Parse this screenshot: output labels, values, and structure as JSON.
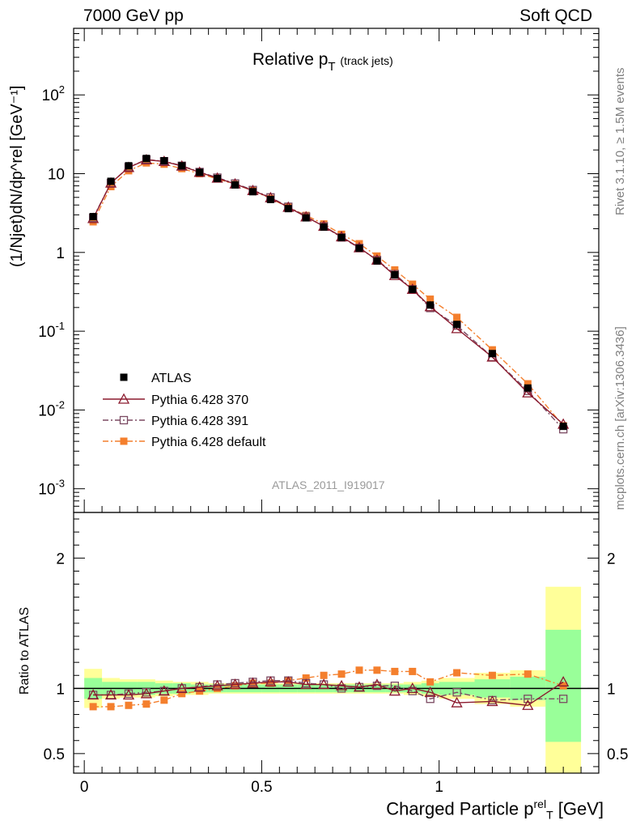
{
  "header": {
    "energy_label": "7000 GeV pp",
    "category_label": "Soft QCD",
    "rivet_label": "Rivet 3.1.10, ≥ 1.5M events",
    "source_label": "mcplots.cern.ch [arXiv:1306.3436]",
    "analysis_label": "ATLAS_2011_I919017"
  },
  "chart_data": [
    {
      "type": "line",
      "title": "Relative p_T (track jets)",
      "title_main": "Relative p",
      "title_sub": "T",
      "title_note": "(track jets)",
      "ylabel": "(1/Njet)dN/dp_T^rel [GeV^-1]",
      "ylabel_text": "(1/Njet)dN/dp^rel [GeV⁻¹]",
      "yscale": "log",
      "ylim": [
        0.0005,
        700
      ],
      "yticks": [
        {
          "value": 0.001,
          "label": "10",
          "exp": "-3"
        },
        {
          "value": 0.01,
          "label": "10",
          "exp": "-2"
        },
        {
          "value": 0.1,
          "label": "10",
          "exp": "-1"
        },
        {
          "value": 1,
          "label": "1",
          "exp": ""
        },
        {
          "value": 10,
          "label": "10",
          "exp": ""
        },
        {
          "value": 100,
          "label": "10",
          "exp": "2"
        }
      ],
      "xlim": [
        -0.03,
        1.45
      ],
      "x": [
        0.025,
        0.075,
        0.125,
        0.175,
        0.225,
        0.275,
        0.325,
        0.375,
        0.425,
        0.475,
        0.525,
        0.575,
        0.625,
        0.675,
        0.725,
        0.775,
        0.825,
        0.875,
        0.925,
        0.975,
        1.05,
        1.15,
        1.25,
        1.35
      ],
      "legend_position": "lower-left",
      "series": [
        {
          "name": "ATLAS",
          "style": "data",
          "marker": "filled-square",
          "color": "#000000",
          "values": [
            2.85,
            8.0,
            12.6,
            15.6,
            14.6,
            12.6,
            10.4,
            8.7,
            7.2,
            5.9,
            4.7,
            3.6,
            2.75,
            2.1,
            1.55,
            1.13,
            0.78,
            0.52,
            0.34,
            0.215,
            0.122,
            0.052,
            0.019,
            0.0062
          ]
        },
        {
          "name": "Pythia 6.428 370",
          "style": "solid",
          "marker": "open-triangle",
          "color": "#8b1a2e",
          "values": [
            2.7,
            7.6,
            12.0,
            15.0,
            14.3,
            12.5,
            10.4,
            8.8,
            7.4,
            6.1,
            4.95,
            3.75,
            2.83,
            2.15,
            1.58,
            1.15,
            0.8,
            0.51,
            0.34,
            0.205,
            0.108,
            0.047,
            0.0165,
            0.0066
          ]
        },
        {
          "name": "Pythia 6.428 391",
          "style": "dashdot",
          "marker": "open-square",
          "color": "#7b4a62",
          "values": [
            2.75,
            7.6,
            12.1,
            15.1,
            14.4,
            12.6,
            10.5,
            8.9,
            7.5,
            6.2,
            5.0,
            3.8,
            2.85,
            2.15,
            1.55,
            1.14,
            0.8,
            0.53,
            0.34,
            0.197,
            0.118,
            0.047,
            0.0175,
            0.0057
          ]
        },
        {
          "name": "Pythia 6.428 default",
          "style": "dashdot",
          "marker": "filled-square",
          "color": "#f47f2d",
          "values": [
            2.45,
            6.85,
            10.9,
            13.7,
            13.2,
            11.6,
            10.0,
            8.6,
            7.3,
            6.1,
            4.85,
            3.75,
            2.95,
            2.3,
            1.7,
            1.29,
            0.9,
            0.6,
            0.395,
            0.255,
            0.15,
            0.058,
            0.0215,
            0.0063
          ]
        }
      ]
    },
    {
      "type": "line",
      "title": "",
      "ylabel": "Ratio to ATLAS",
      "xlabel": "Charged Particle p_T^rel [GeV]",
      "xlabel_main": "Charged Particle p",
      "xlabel_sub": "T",
      "xlabel_sup": "rel",
      "xlabel_unit": " [GeV]",
      "ylim": [
        0.35,
        2.35
      ],
      "yticks": [
        {
          "value": 0.5,
          "label": "0.5"
        },
        {
          "value": 1,
          "label": "1"
        },
        {
          "value": 2,
          "label": "2"
        }
      ],
      "xlim": [
        -0.03,
        1.45
      ],
      "xticks": [
        {
          "value": 0,
          "label": "0"
        },
        {
          "value": 0.5,
          "label": "0.5"
        },
        {
          "value": 1,
          "label": "1"
        }
      ],
      "x": [
        0.025,
        0.075,
        0.125,
        0.175,
        0.225,
        0.275,
        0.325,
        0.375,
        0.425,
        0.475,
        0.525,
        0.575,
        0.625,
        0.675,
        0.725,
        0.775,
        0.825,
        0.875,
        0.925,
        0.975,
        1.05,
        1.15,
        1.25,
        1.35
      ],
      "bands": {
        "edges": [
          0.0,
          0.05,
          0.1,
          0.15,
          0.2,
          0.25,
          0.3,
          0.35,
          0.4,
          0.45,
          0.5,
          0.55,
          0.6,
          0.65,
          0.7,
          0.75,
          0.8,
          0.85,
          0.9,
          0.95,
          1.0,
          1.1,
          1.2,
          1.3,
          1.4
        ],
        "green": [
          [
            0.92,
            1.08
          ],
          [
            0.95,
            1.05
          ],
          [
            0.95,
            1.05
          ],
          [
            0.95,
            1.05
          ],
          [
            0.96,
            1.04
          ],
          [
            0.96,
            1.04
          ],
          [
            0.97,
            1.03
          ],
          [
            0.97,
            1.03
          ],
          [
            0.97,
            1.03
          ],
          [
            0.97,
            1.03
          ],
          [
            0.97,
            1.03
          ],
          [
            0.97,
            1.03
          ],
          [
            0.97,
            1.03
          ],
          [
            0.97,
            1.03
          ],
          [
            0.97,
            1.03
          ],
          [
            0.97,
            1.03
          ],
          [
            0.97,
            1.03
          ],
          [
            0.97,
            1.03
          ],
          [
            0.97,
            1.03
          ],
          [
            0.96,
            1.04
          ],
          [
            0.95,
            1.05
          ],
          [
            0.93,
            1.07
          ],
          [
            0.91,
            1.09
          ],
          [
            0.59,
            1.45
          ]
        ],
        "yellow": [
          [
            0.85,
            1.15
          ],
          [
            0.92,
            1.08
          ],
          [
            0.93,
            1.07
          ],
          [
            0.93,
            1.07
          ],
          [
            0.94,
            1.06
          ],
          [
            0.95,
            1.05
          ],
          [
            0.95,
            1.05
          ],
          [
            0.96,
            1.04
          ],
          [
            0.96,
            1.04
          ],
          [
            0.96,
            1.04
          ],
          [
            0.96,
            1.04
          ],
          [
            0.96,
            1.04
          ],
          [
            0.96,
            1.04
          ],
          [
            0.96,
            1.04
          ],
          [
            0.96,
            1.04
          ],
          [
            0.96,
            1.04
          ],
          [
            0.96,
            1.04
          ],
          [
            0.96,
            1.04
          ],
          [
            0.95,
            1.05
          ],
          [
            0.94,
            1.06
          ],
          [
            0.92,
            1.08
          ],
          [
            0.88,
            1.12
          ],
          [
            0.86,
            1.14
          ],
          [
            0.35,
            1.78
          ]
        ]
      },
      "series": [
        {
          "name": "Pythia 6.428 370",
          "style": "solid",
          "marker": "open-triangle",
          "color": "#8b1a2e",
          "values": [
            0.95,
            0.95,
            0.95,
            0.96,
            0.98,
            1.0,
            1.01,
            1.02,
            1.03,
            1.04,
            1.05,
            1.05,
            1.03,
            1.03,
            1.02,
            1.01,
            1.03,
            0.98,
            1.0,
            0.97,
            0.89,
            0.9,
            0.87,
            1.05
          ]
        },
        {
          "name": "Pythia 6.428 391",
          "style": "dashdot",
          "marker": "open-square",
          "color": "#7b4a62",
          "values": [
            0.95,
            0.95,
            0.96,
            0.97,
            0.98,
            1.0,
            1.01,
            1.03,
            1.04,
            1.05,
            1.06,
            1.06,
            1.04,
            1.03,
            1.0,
            1.01,
            1.02,
            1.02,
            0.98,
            0.92,
            0.97,
            0.91,
            0.92,
            0.92
          ]
        },
        {
          "name": "Pythia 6.428 default",
          "style": "dashdot",
          "marker": "filled-square",
          "color": "#f47f2d",
          "values": [
            0.86,
            0.86,
            0.87,
            0.88,
            0.91,
            0.96,
            0.98,
            1.0,
            1.02,
            1.04,
            1.04,
            1.06,
            1.08,
            1.1,
            1.11,
            1.14,
            1.14,
            1.13,
            1.13,
            1.05,
            1.12,
            1.1,
            1.11,
            1.02
          ]
        }
      ]
    }
  ]
}
